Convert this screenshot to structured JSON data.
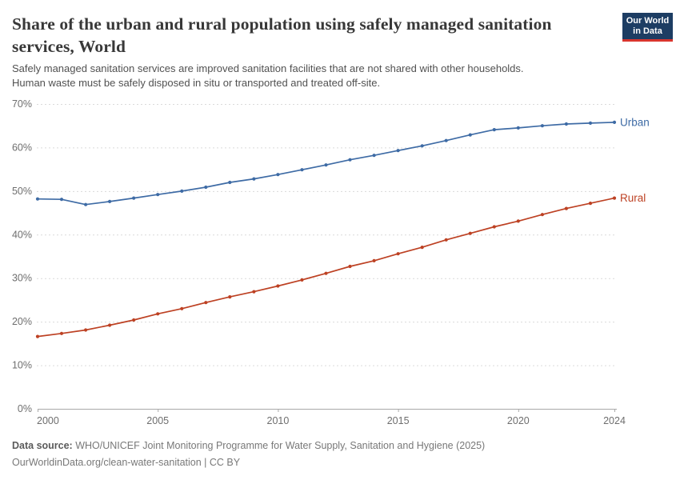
{
  "header": {
    "title_line1": "Share of the urban and rural population using safely managed sanitation",
    "title_line2": "services, World",
    "subtitle_line1": "Safely managed sanitation services are improved sanitation facilities that are not shared with other households.",
    "subtitle_line2": "Human waste must be safely disposed in situ or transported and treated off-site.",
    "logo_line1": "Our World",
    "logo_line2": "in Data",
    "logo_bg_color": "#1d3d63",
    "logo_bar_color": "#d8352e"
  },
  "chart_data": {
    "type": "line",
    "title": "Share of the urban and rural population using safely managed sanitation services, World",
    "xlabel": "",
    "ylabel": "",
    "x": [
      2000,
      2001,
      2002,
      2003,
      2004,
      2005,
      2006,
      2007,
      2008,
      2009,
      2010,
      2011,
      2012,
      2013,
      2014,
      2015,
      2016,
      2017,
      2018,
      2019,
      2020,
      2021,
      2022,
      2023,
      2024
    ],
    "series": [
      {
        "name": "Urban",
        "color": "#3e6ba5",
        "values": [
          48.2,
          48.1,
          46.9,
          47.6,
          48.4,
          49.2,
          50.0,
          50.9,
          52.0,
          52.8,
          53.8,
          54.9,
          56.0,
          57.2,
          58.2,
          59.3,
          60.4,
          61.6,
          62.9,
          64.1,
          64.5,
          65.0,
          65.4,
          65.6,
          65.8
        ]
      },
      {
        "name": "Rural",
        "color": "#bd4123",
        "values": [
          16.6,
          17.3,
          18.1,
          19.2,
          20.4,
          21.8,
          23.0,
          24.4,
          25.7,
          26.9,
          28.2,
          29.6,
          31.1,
          32.7,
          34.0,
          35.6,
          37.1,
          38.8,
          40.3,
          41.8,
          43.1,
          44.6,
          46.0,
          47.2,
          48.4
        ]
      }
    ],
    "ylim": [
      0,
      70
    ],
    "yticks": [
      0,
      10,
      20,
      30,
      40,
      50,
      60,
      70
    ],
    "ytick_suffix": "%",
    "xticks": [
      2000,
      2005,
      2010,
      2015,
      2020,
      2024
    ],
    "grid": true,
    "grid_style": "dashed",
    "legend_position": "line-end-labels",
    "colors": {
      "gridline": "#dadada",
      "axis": "#a9a9a9",
      "tick_label": "#6e6e6e"
    }
  },
  "footer": {
    "source_label": "Data source:",
    "source_text": " WHO/UNICEF Joint Monitoring Programme for Water Supply, Sanitation and Hygiene (2025)",
    "url_line": "OurWorldinData.org/clean-water-sanitation | CC BY"
  }
}
